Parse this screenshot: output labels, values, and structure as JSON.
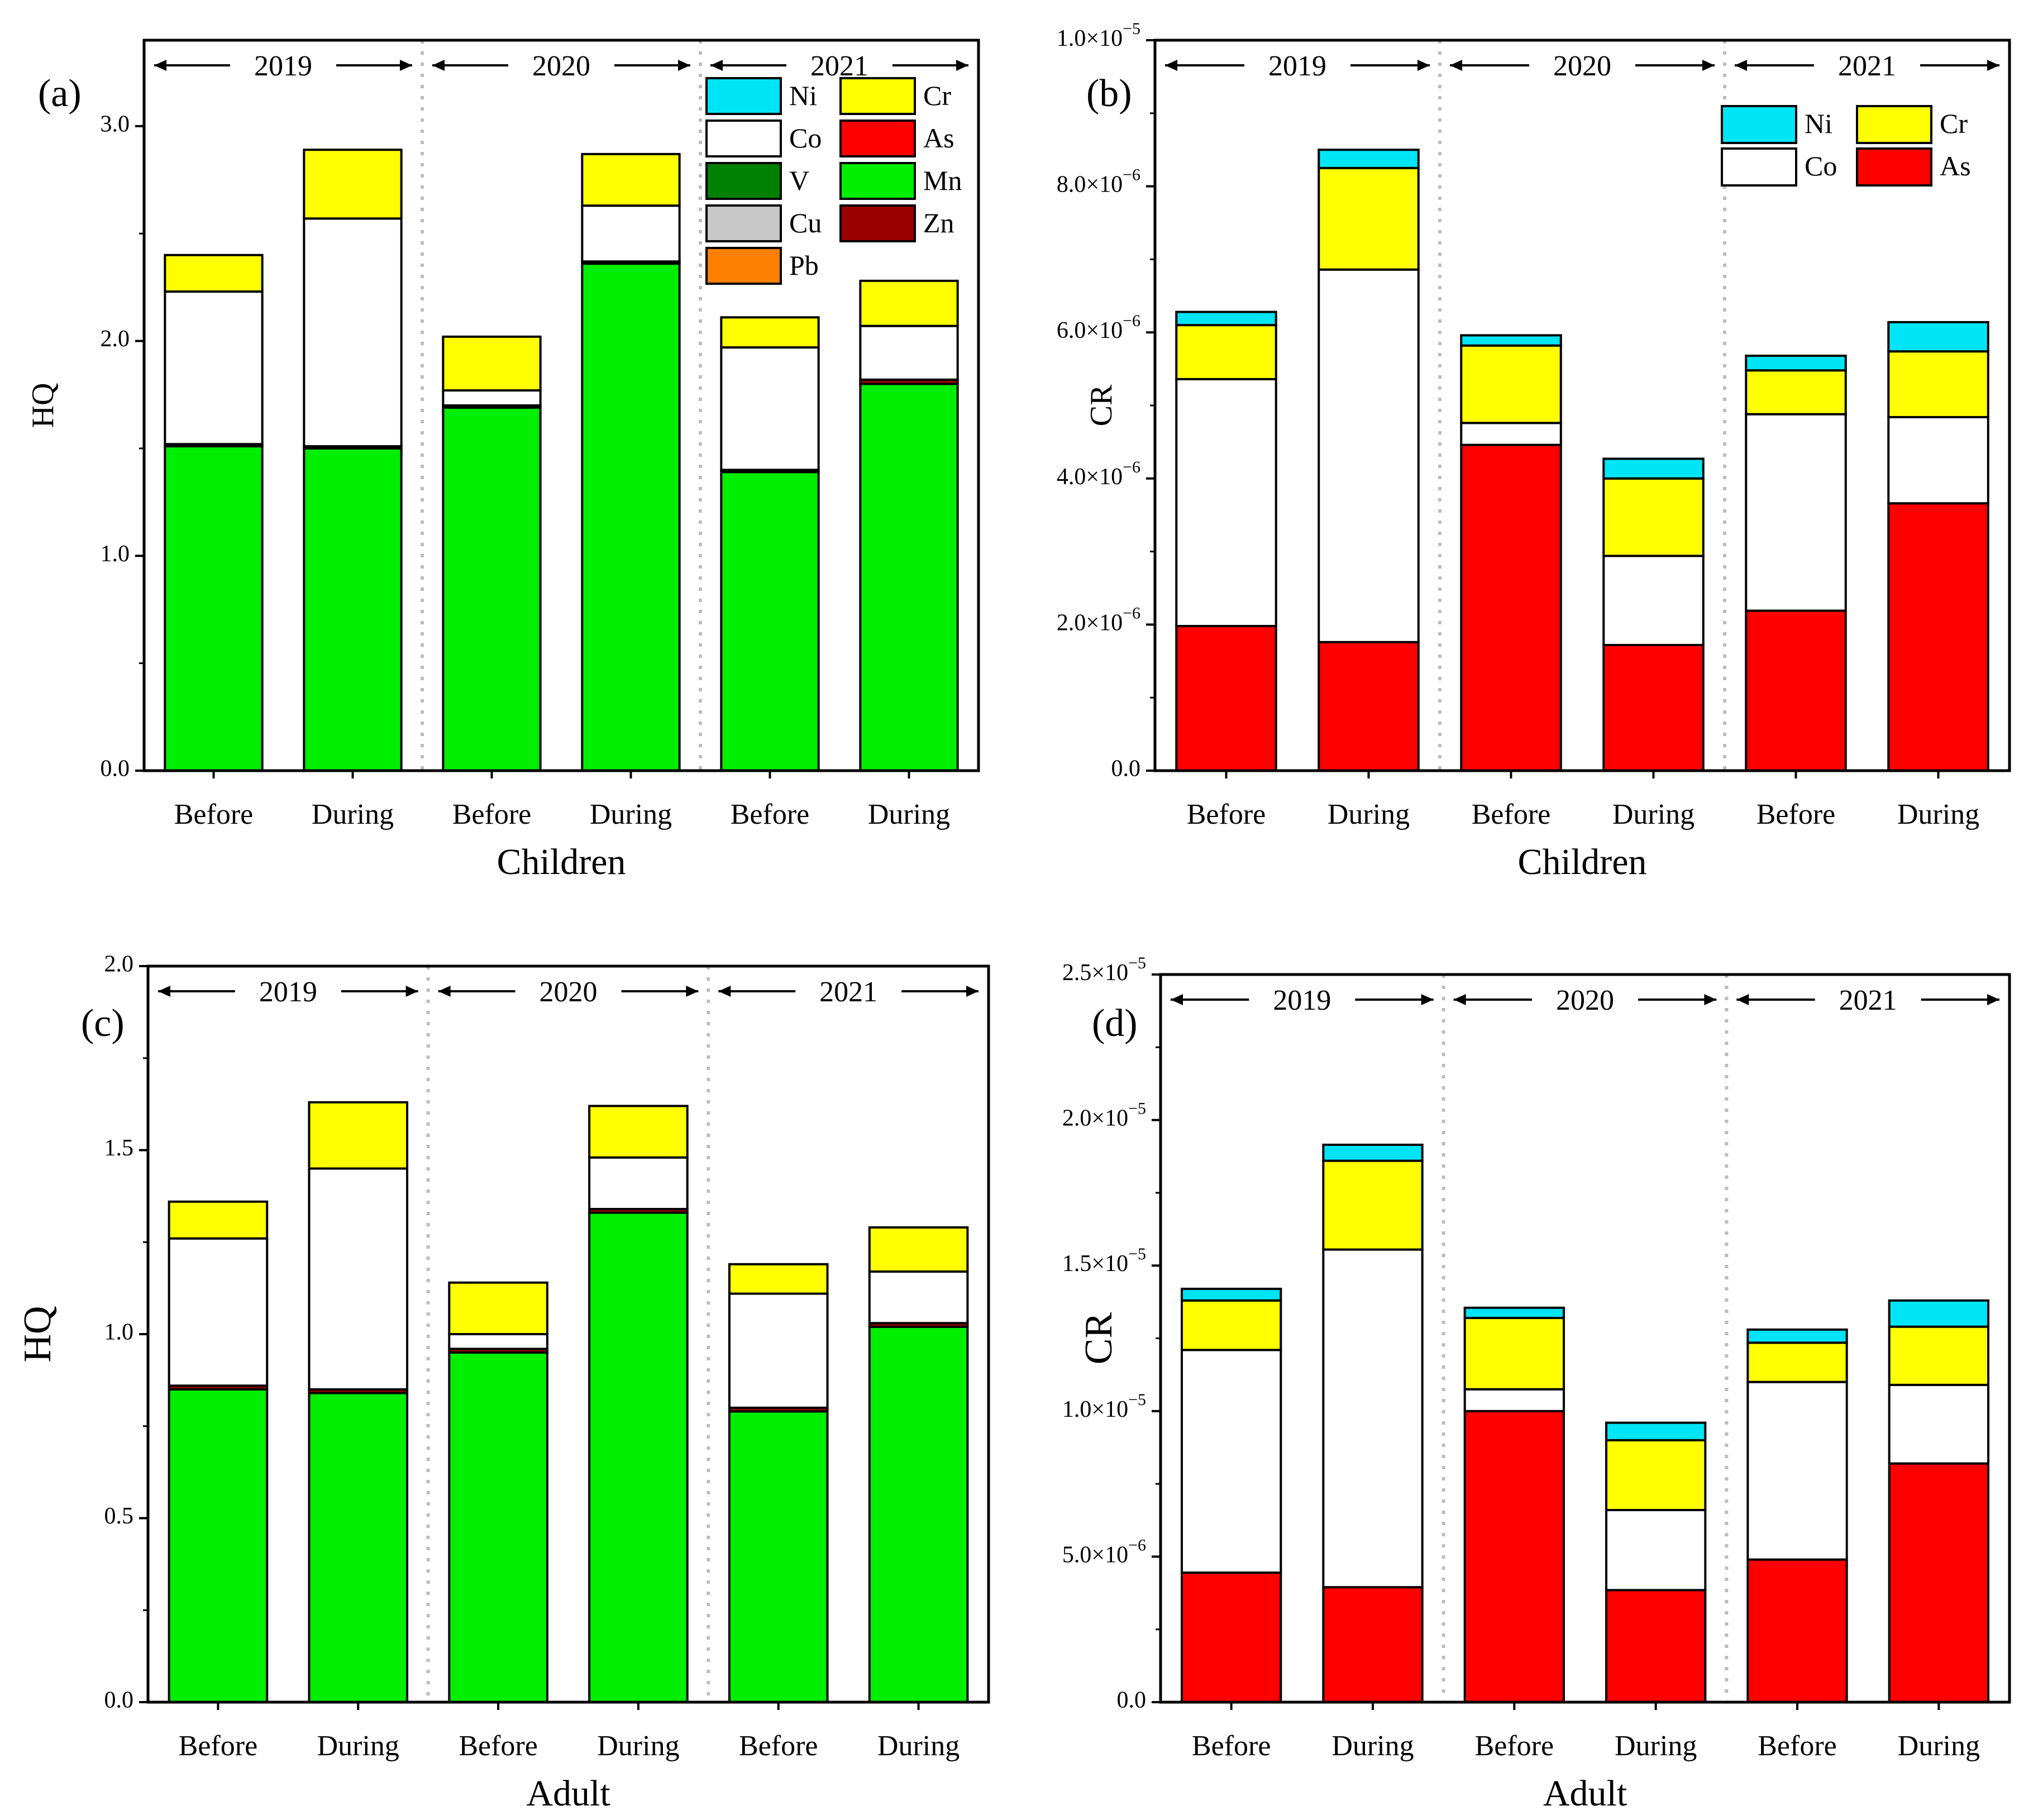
{
  "figure": {
    "colors": {
      "Ni": "#00e5f5",
      "Cr": "#ffff00",
      "Co": "#ffffff",
      "As": "#ff0000",
      "V": "#008000",
      "Mn": "#00ee00",
      "Cu": "#c8c8c8",
      "Zn": "#990000",
      "Pb": "#ff8000"
    }
  },
  "chart_data": [
    {
      "id": "a",
      "panel_label": "(a)",
      "type": "bar",
      "stacked": true,
      "title": "",
      "xlabel": "Children",
      "ylabel": "HQ",
      "ylim": [
        0,
        3.4
      ],
      "yticks": [
        0.0,
        1.0,
        2.0,
        3.0
      ],
      "ytick_labels": [
        "0.0",
        "1.0",
        "2.0",
        "3.0"
      ],
      "categories": [
        "Before",
        "During",
        "Before",
        "During",
        "Before",
        "During"
      ],
      "years": [
        "2019",
        "2020",
        "2021"
      ],
      "legend": [
        "Ni",
        "Cr",
        "Co",
        "As",
        "V",
        "Mn",
        "Cu",
        "Zn",
        "Pb"
      ],
      "series": [
        {
          "name": "Mn",
          "values": [
            1.51,
            1.5,
            1.69,
            2.36,
            1.39,
            1.8
          ]
        },
        {
          "name": "Zn",
          "values": [
            0.01,
            0.01,
            0.01,
            0.01,
            0.01,
            0.02
          ]
        },
        {
          "name": "Co",
          "values": [
            0.71,
            1.06,
            0.07,
            0.26,
            0.57,
            0.25
          ]
        },
        {
          "name": "Cr",
          "values": [
            0.17,
            0.32,
            0.25,
            0.24,
            0.14,
            0.21
          ]
        }
      ]
    },
    {
      "id": "b",
      "panel_label": "(b)",
      "type": "bar",
      "stacked": true,
      "title": "",
      "xlabel": "Children",
      "ylabel": "CR",
      "ylim": [
        0,
        1e-05
      ],
      "yticks": [
        0,
        2e-06,
        4e-06,
        6e-06,
        8e-06,
        1e-05
      ],
      "ytick_labels": [
        "0.0",
        "2.0×10⁻⁶",
        "4.0×10⁻⁶",
        "6.0×10⁻⁶",
        "8.0×10⁻⁶",
        "1.0×10⁻⁵"
      ],
      "categories": [
        "Before",
        "During",
        "Before",
        "During",
        "Before",
        "During"
      ],
      "years": [
        "2019",
        "2020",
        "2021"
      ],
      "legend": [
        "Ni",
        "Cr",
        "Co",
        "As"
      ],
      "series": [
        {
          "name": "As",
          "values": [
            1.98e-06,
            1.76e-06,
            4.46e-06,
            1.72e-06,
            2.19e-06,
            3.66e-06
          ]
        },
        {
          "name": "Co",
          "values": [
            3.38e-06,
            5.1e-06,
            3e-07,
            1.22e-06,
            2.69e-06,
            1.18e-06
          ]
        },
        {
          "name": "Cr",
          "values": [
            7.4e-07,
            1.39e-06,
            1.06e-06,
            1.06e-06,
            6e-07,
            9e-07
          ]
        },
        {
          "name": "Ni",
          "values": [
            1.8e-07,
            2.5e-07,
            1.4e-07,
            2.7e-07,
            2e-07,
            4e-07
          ]
        }
      ]
    },
    {
      "id": "c",
      "panel_label": "(c)",
      "type": "bar",
      "stacked": true,
      "title": "",
      "xlabel": "Adult",
      "ylabel": "HQ",
      "ylim": [
        0,
        2.0
      ],
      "yticks": [
        0.0,
        0.5,
        1.0,
        1.5,
        2.0
      ],
      "ytick_labels": [
        "0.0",
        "0.5",
        "1.0",
        "1.5",
        "2.0"
      ],
      "categories": [
        "Before",
        "During",
        "Before",
        "During",
        "Before",
        "During"
      ],
      "years": [
        "2019",
        "2020",
        "2021"
      ],
      "legend": [],
      "series": [
        {
          "name": "Mn",
          "values": [
            0.85,
            0.84,
            0.95,
            1.33,
            0.79,
            1.02
          ]
        },
        {
          "name": "Zn",
          "values": [
            0.01,
            0.01,
            0.01,
            0.01,
            0.01,
            0.01
          ]
        },
        {
          "name": "Co",
          "values": [
            0.4,
            0.6,
            0.04,
            0.14,
            0.31,
            0.14
          ]
        },
        {
          "name": "Cr",
          "values": [
            0.1,
            0.18,
            0.14,
            0.14,
            0.08,
            0.12
          ]
        }
      ]
    },
    {
      "id": "d",
      "panel_label": "(d)",
      "type": "bar",
      "stacked": true,
      "title": "",
      "xlabel": "Adult",
      "ylabel": "CR",
      "ylim": [
        0,
        2.5e-05
      ],
      "yticks": [
        0,
        5e-06,
        1e-05,
        1.5e-05,
        2e-05,
        2.5e-05
      ],
      "ytick_labels": [
        "0.0",
        "5.0×10⁻⁶",
        "1.0×10⁻⁵",
        "1.5×10⁻⁵",
        "2.0×10⁻⁵",
        "2.5×10⁻⁵"
      ],
      "categories": [
        "Before",
        "During",
        "Before",
        "During",
        "Before",
        "During"
      ],
      "years": [
        "2019",
        "2020",
        "2021"
      ],
      "legend": [],
      "series": [
        {
          "name": "As",
          "values": [
            4.45e-06,
            3.95e-06,
            1e-05,
            3.85e-06,
            4.9e-06,
            8.2e-06
          ]
        },
        {
          "name": "Co",
          "values": [
            7.65e-06,
            1.16e-05,
            7.5e-07,
            2.75e-06,
            6.1e-06,
            2.7e-06
          ]
        },
        {
          "name": "Cr",
          "values": [
            1.7e-06,
            3.05e-06,
            2.45e-06,
            2.4e-06,
            1.35e-06,
            2e-06
          ]
        },
        {
          "name": "Ni",
          "values": [
            4e-07,
            5.5e-07,
            3.5e-07,
            6e-07,
            4.5e-07,
            9e-07
          ]
        }
      ]
    }
  ]
}
